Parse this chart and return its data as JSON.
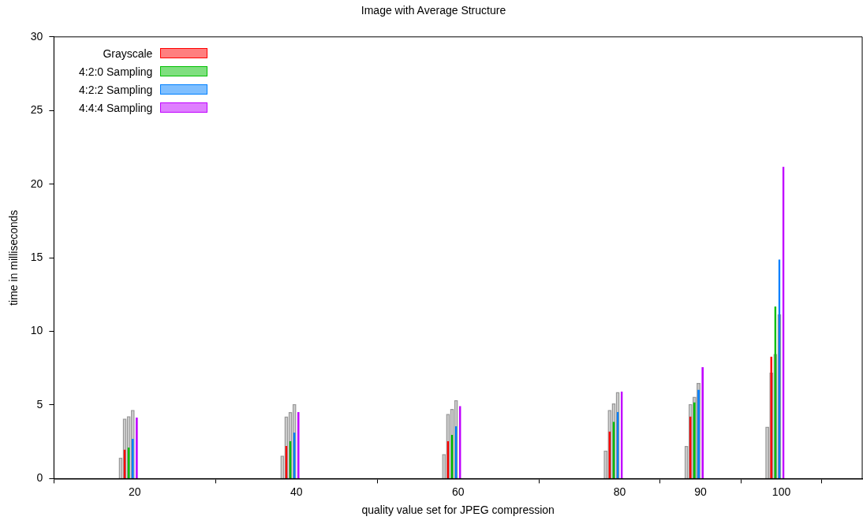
{
  "chart_data": {
    "type": "bar",
    "title": "Image with Average Structure",
    "xlabel": "quality value set for JPEG compression",
    "ylabel": "time in milliseconds",
    "x": [
      20,
      40,
      60,
      80,
      90,
      100
    ],
    "series": [
      {
        "color": "#999999",
        "values": [
          1.42,
          1.56,
          1.67,
          1.91,
          2.22,
          3.53
        ]
      },
      {
        "color": "#999999",
        "values": [
          4.07,
          4.22,
          4.4,
          4.67,
          5.07,
          7.2
        ]
      },
      {
        "color": "#999999",
        "values": [
          4.24,
          4.51,
          4.73,
          5.11,
          5.56,
          8.46
        ]
      },
      {
        "color": "#999999",
        "values": [
          4.67,
          5.07,
          5.33,
          5.88,
          6.49,
          11.17
        ]
      },
      {
        "name": "Grayscale",
        "color": "#ff0000",
        "values": [
          1.98,
          2.22,
          2.55,
          3.2,
          4.22,
          8.29
        ]
      },
      {
        "name": "4:2:0 Sampling",
        "color": "#00c000",
        "values": [
          2.11,
          2.55,
          2.98,
          3.86,
          5.18,
          11.69
        ]
      },
      {
        "name": "4:2:2 Sampling",
        "color": "#0080ff",
        "values": [
          2.71,
          3.13,
          3.56,
          4.53,
          6.04,
          14.88
        ]
      },
      {
        "name": "4:4:4 Sampling",
        "color": "#c000ff",
        "values": [
          4.15,
          4.51,
          4.93,
          5.91,
          7.57,
          21.18
        ]
      }
    ],
    "xlim": [
      10,
      110
    ],
    "xticks": [
      20,
      40,
      60,
      80,
      90,
      100
    ],
    "ylim": [
      0,
      30
    ],
    "yticks": [
      0,
      5,
      10,
      15,
      20,
      25,
      30
    ],
    "grid": false,
    "legend": "top left"
  }
}
